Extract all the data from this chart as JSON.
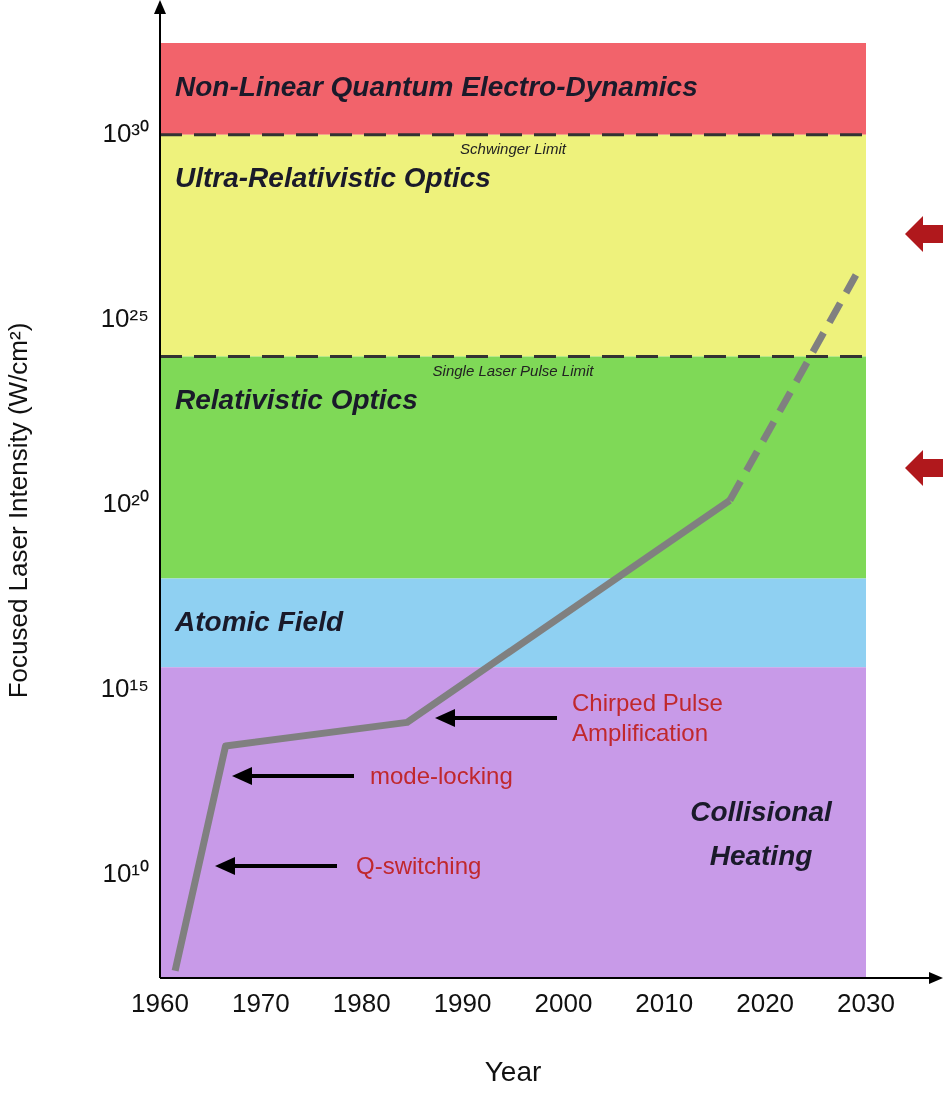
{
  "chart_data": {
    "type": "line",
    "xlabel": "Year",
    "ylabel": "Focused Laser Intensity (W/cm²)",
    "log": "y",
    "grid": false,
    "legend": false,
    "xlim": [
      1960,
      2030
    ],
    "xticks": [
      1960,
      1970,
      1980,
      1990,
      2000,
      2010,
      2020,
      2030
    ],
    "ylim": [
      16000000.0,
      3e+32
    ],
    "yticks": [
      {
        "value": 10000000000.0,
        "label": "10¹⁰"
      },
      {
        "value": 1000000000000000.0,
        "label": "10¹⁵"
      },
      {
        "value": 1e+20,
        "label": "10²⁰"
      },
      {
        "value": 1e+25,
        "label": "10²⁵"
      },
      {
        "value": 1e+30,
        "label": "10³⁰"
      }
    ],
    "bands": [
      {
        "axis": "y",
        "from": 1e+30,
        "to": 3e+32,
        "label": "Non-Linear Quantum Electro-Dynamics",
        "color": "#f2636b"
      },
      {
        "axis": "y",
        "from": 1e+24,
        "to": 1e+30,
        "label": "Ultra-Relativistic Optics",
        "color": "#eef27c"
      },
      {
        "axis": "y",
        "from": 1e+18,
        "to": 1e+24,
        "label": "Relativistic Optics",
        "color": "#7fd957"
      },
      {
        "axis": "y",
        "from": 4000000000000000.0,
        "to": 1e+18,
        "label": "Atomic Field",
        "color": "#8fd0f2"
      },
      {
        "axis": "y",
        "from": 16000000.0,
        "to": 4000000000000000.0,
        "label": "Collisional Heating",
        "color": "#c89ae8"
      }
    ],
    "ref_lines": [
      {
        "axis": "y",
        "value": 1e+30,
        "label": "Schwinger Limit",
        "color": "#333333",
        "line_style": "dashed"
      },
      {
        "axis": "y",
        "value": 1e+24,
        "label": "Single Laser Pulse Limit",
        "color": "#333333",
        "line_style": "dashed"
      }
    ],
    "series": [
      {
        "color": "#808080",
        "line_style": "solid",
        "x": [
          1961.5,
          1966.5,
          1984.5,
          2016.5
        ],
        "values": [
          25000000.0,
          30000000000000.0,
          130000000000000.0,
          1.3e+20
        ]
      },
      {
        "color": "#808080",
        "line_style": "dashed",
        "x": [
          2016.5,
          2029
        ],
        "values": [
          1.3e+20,
          1.6e+26
        ]
      }
    ],
    "marker": "none",
    "annotations": [
      "Chirped Pulse Amplification",
      "mode-locking",
      "Q-switching"
    ]
  }
}
